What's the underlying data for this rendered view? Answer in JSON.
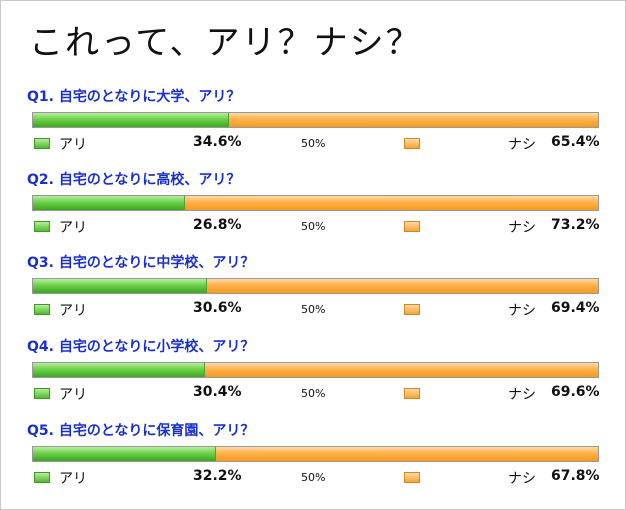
{
  "title": "これって、アリ？ナシ？",
  "colors": {
    "yes": "#5cc43a",
    "no": "#ffac3f",
    "question": "#1a2fd0"
  },
  "chart_data": {
    "type": "bar",
    "orientation": "horizontal-stacked",
    "title": "これって、アリ？ナシ？",
    "mid_label": "50%",
    "xlim": [
      0,
      100
    ],
    "series_names": [
      "アリ",
      "ナシ"
    ],
    "items": [
      {
        "question": "Q1. 自宅のとなりに大学、アリ？",
        "yes": 34.6,
        "yes_label": "34.6%",
        "no": 65.4,
        "no_label": "65.4%"
      },
      {
        "question": "Q2. 自宅のとなりに高校、アリ？",
        "yes": 26.8,
        "yes_label": "26.8%",
        "no": 73.2,
        "no_label": "73.2%"
      },
      {
        "question": "Q3. 自宅のとなりに中学校、アリ？",
        "yes": 30.6,
        "yes_label": "30.6%",
        "no": 69.4,
        "no_label": "69.4%"
      },
      {
        "question": "Q4. 自宅のとなりに小学校、アリ？",
        "yes": 30.4,
        "yes_label": "30.4%",
        "no": 69.6,
        "no_label": "69.6%"
      },
      {
        "question": "Q5. 自宅のとなりに保育園、アリ？",
        "yes": 32.2,
        "yes_label": "32.2%",
        "no": 67.8,
        "no_label": "67.8%"
      }
    ]
  }
}
